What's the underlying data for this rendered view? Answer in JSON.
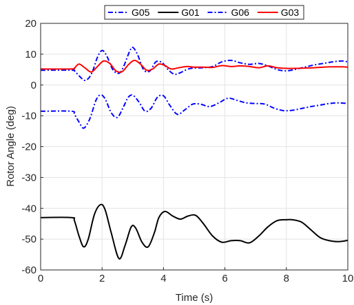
{
  "chart_data": {
    "type": "line",
    "title": "",
    "xlabel": "Time (s)",
    "ylabel": "Rotor Angle (deg)",
    "xlim": [
      0,
      10
    ],
    "ylim": [
      -60,
      20
    ],
    "xticks": [
      0,
      2,
      4,
      6,
      8,
      10
    ],
    "yticks": [
      -60,
      -50,
      -40,
      -30,
      -20,
      -10,
      0,
      10,
      20
    ],
    "grid": true,
    "legend_position": "top",
    "series": [
      {
        "name": "G05",
        "color": "#0000FF",
        "dash": "dashdot",
        "x": [
          0,
          1.0,
          1.1,
          1.25,
          1.45,
          1.65,
          1.85,
          2.0,
          2.15,
          2.35,
          2.55,
          2.7,
          2.9,
          3.0,
          3.15,
          3.35,
          3.55,
          3.75,
          3.95,
          4.15,
          4.35,
          4.55,
          4.8,
          5.0,
          5.3,
          5.6,
          5.9,
          6.2,
          6.5,
          6.8,
          7.1,
          7.4,
          7.7,
          8.0,
          8.3,
          8.6,
          8.9,
          9.2,
          9.5,
          9.8,
          10.0
        ],
        "y": [
          4.8,
          4.8,
          4.6,
          3.0,
          1.5,
          3.5,
          9.0,
          11.2,
          9.5,
          5.0,
          3.8,
          6.0,
          11.0,
          12.2,
          10.0,
          5.0,
          4.5,
          7.5,
          7.3,
          5.0,
          3.5,
          4.0,
          5.2,
          5.5,
          5.6,
          6.0,
          7.5,
          8.0,
          7.2,
          6.7,
          7.0,
          6.2,
          5.0,
          4.6,
          5.1,
          5.8,
          6.5,
          7.0,
          7.5,
          7.8,
          7.5
        ]
      },
      {
        "name": "G01",
        "color": "#000000",
        "dash": "solid",
        "x": [
          0,
          1.0,
          1.1,
          1.25,
          1.4,
          1.55,
          1.75,
          1.95,
          2.1,
          2.3,
          2.55,
          2.75,
          2.95,
          3.1,
          3.3,
          3.5,
          3.7,
          3.85,
          4.05,
          4.3,
          4.55,
          4.8,
          5.05,
          5.3,
          5.6,
          5.9,
          6.2,
          6.5,
          6.8,
          7.1,
          7.4,
          7.7,
          8.0,
          8.2,
          8.5,
          8.8,
          9.1,
          9.4,
          9.7,
          10.0
        ],
        "y": [
          -43,
          -43,
          -44,
          -49,
          -52.5,
          -50,
          -42,
          -38.8,
          -40.5,
          -48,
          -56.3,
          -52,
          -46,
          -46.5,
          -51,
          -52.5,
          -48,
          -43,
          -41,
          -42.5,
          -43.5,
          -42.5,
          -42.3,
          -45,
          -49,
          -51,
          -50.5,
          -50.5,
          -51.2,
          -49,
          -46,
          -44,
          -43.7,
          -43.7,
          -44.5,
          -47,
          -49.5,
          -50.5,
          -50.8,
          -50.4
        ]
      },
      {
        "name": "G06",
        "color": "#0000FF",
        "dash": "dashdot",
        "x": [
          0,
          1.0,
          1.1,
          1.25,
          1.4,
          1.6,
          1.8,
          1.95,
          2.1,
          2.3,
          2.5,
          2.7,
          2.85,
          3.0,
          3.2,
          3.4,
          3.6,
          3.8,
          4.0,
          4.2,
          4.45,
          4.7,
          4.95,
          5.2,
          5.5,
          5.8,
          6.1,
          6.4,
          6.7,
          7.0,
          7.3,
          7.6,
          7.9,
          8.2,
          8.5,
          8.8,
          9.1,
          9.4,
          9.7,
          10.0
        ],
        "y": [
          -8.5,
          -8.5,
          -9.5,
          -12,
          -14,
          -11,
          -5,
          -3.2,
          -4.5,
          -9,
          -10.5,
          -7,
          -4,
          -3.3,
          -5.5,
          -8.5,
          -7.5,
          -4,
          -3.5,
          -6.5,
          -9.5,
          -8,
          -6.2,
          -6.2,
          -7,
          -5.8,
          -4.3,
          -5,
          -5.8,
          -6,
          -6.2,
          -7.5,
          -8.3,
          -8.2,
          -7.6,
          -7,
          -6.5,
          -6,
          -5.8,
          -6
        ]
      },
      {
        "name": "G03",
        "color": "#FF0000",
        "dash": "solid",
        "x": [
          0,
          1.0,
          1.1,
          1.25,
          1.45,
          1.65,
          1.85,
          2.05,
          2.25,
          2.45,
          2.65,
          2.85,
          3.05,
          3.25,
          3.45,
          3.65,
          3.85,
          4.05,
          4.25,
          4.5,
          4.75,
          5.0,
          5.3,
          5.6,
          5.9,
          6.2,
          6.5,
          6.8,
          7.1,
          7.4,
          7.7,
          8.0,
          8.3,
          8.6,
          8.9,
          9.2,
          9.5,
          9.8,
          10.0
        ],
        "y": [
          5.2,
          5.2,
          5.5,
          6.8,
          5.5,
          4.2,
          6.0,
          7.8,
          7.0,
          4.6,
          4.3,
          6.5,
          8.0,
          6.8,
          4.8,
          5.2,
          6.8,
          6.3,
          5.2,
          5.6,
          6.0,
          5.8,
          5.8,
          5.7,
          6.3,
          6.0,
          6.2,
          6.0,
          5.6,
          6.2,
          5.6,
          5.4,
          5.4,
          5.5,
          5.6,
          5.8,
          5.9,
          5.9,
          5.8
        ]
      }
    ]
  }
}
